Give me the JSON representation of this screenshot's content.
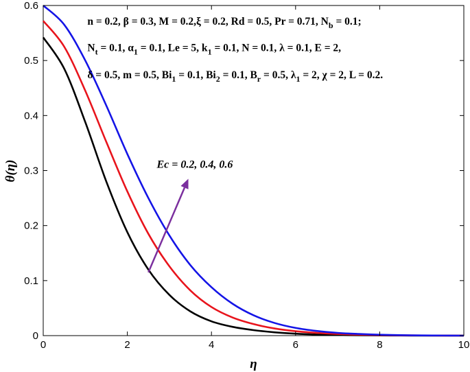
{
  "chart_data": {
    "type": "line",
    "xlabel": "η",
    "ylabel": "θ(η)",
    "xlim": [
      0,
      10
    ],
    "ylim": [
      0,
      0.6
    ],
    "xticks": [
      "0",
      "2",
      "4",
      "6",
      "8",
      "10"
    ],
    "yticks": [
      "0",
      "0.1",
      "0.2",
      "0.3",
      "0.4",
      "0.5",
      "0.6"
    ],
    "x": [
      0,
      0.5,
      1,
      1.5,
      2,
      2.5,
      3,
      3.5,
      4,
      4.5,
      5,
      5.5,
      6,
      6.5,
      7,
      7.5,
      8,
      8.5,
      9,
      9.5,
      10
    ],
    "series": [
      {
        "color": "#000000",
        "values": [
          0.542,
          0.485,
          0.388,
          0.28,
          0.188,
          0.12,
          0.074,
          0.044,
          0.026,
          0.016,
          0.01,
          0.006,
          0.0035,
          0.002,
          0.0012,
          0.0007,
          0.0004,
          0.0002,
          0.0001,
          5e-05,
          0.0
        ]
      },
      {
        "color": "#e8141c",
        "values": [
          0.572,
          0.525,
          0.445,
          0.352,
          0.262,
          0.185,
          0.126,
          0.082,
          0.052,
          0.033,
          0.021,
          0.013,
          0.008,
          0.005,
          0.003,
          0.0018,
          0.001,
          0.0006,
          0.0003,
          0.0001,
          0.0
        ]
      },
      {
        "color": "#1414e6",
        "values": [
          0.6,
          0.565,
          0.5,
          0.418,
          0.33,
          0.25,
          0.182,
          0.128,
          0.088,
          0.058,
          0.037,
          0.023,
          0.014,
          0.0085,
          0.005,
          0.003,
          0.0017,
          0.0009,
          0.0004,
          0.00015,
          0.0
        ]
      }
    ],
    "annotation": {
      "text": "Ec = 0.2, 0.4, 0.6",
      "arrow_color": "#7b2f9e",
      "arrow_from": [
        2.5,
        0.115
      ],
      "arrow_to": [
        3.45,
        0.285
      ],
      "text_at": [
        2.7,
        0.305
      ]
    },
    "parameter_lines": [
      "n = 0.2, β = 0.3, M = 0.2,ξ = 0.2, Rd = 0.5, Pr = 0.71, N_b = 0.1;",
      "N_t = 0.1, α_1 = 0.1, Le = 5, k_1 = 0.1, N = 0.1, λ = 0.1, E = 2,",
      "δ = 0.5, m = 0.5, Bi_1 = 0.1, Bi_2 = 0.1, B_r = 0.5, λ_1 = 2, χ = 2, L = 0.2."
    ],
    "parameter_lines_at": [
      [
        1.05,
        0.565
      ],
      [
        1.05,
        0.517
      ],
      [
        1.05,
        0.468
      ]
    ],
    "grid": false,
    "legend": "none"
  }
}
